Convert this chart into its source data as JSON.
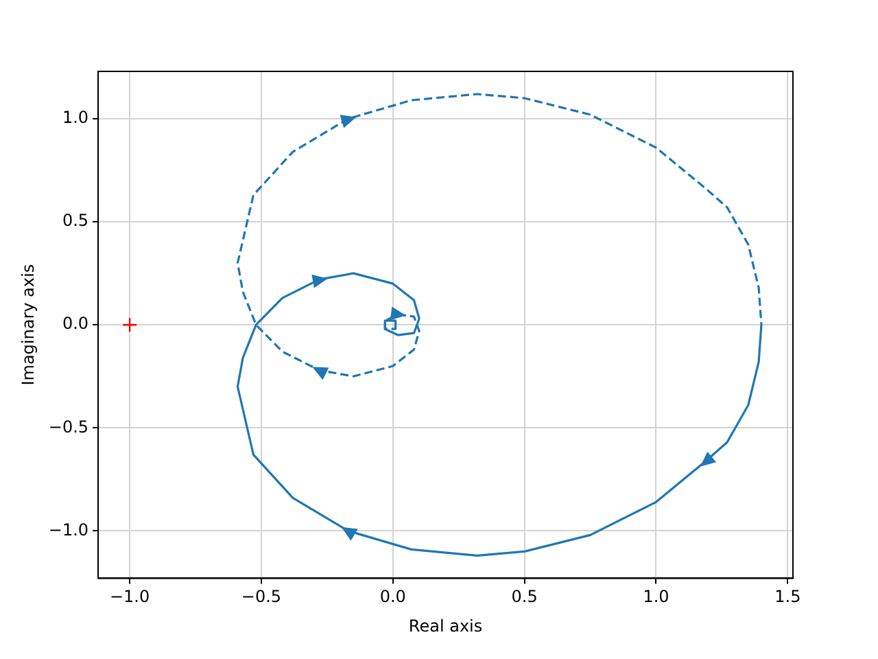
{
  "chart_data": {
    "type": "line",
    "xlabel": "Real axis",
    "ylabel": "Imaginary axis",
    "xlim": [
      -1.12,
      1.52
    ],
    "ylim": [
      -1.23,
      1.23
    ],
    "xticks": [
      {
        "value": -1,
        "label": "−1.0"
      },
      {
        "value": -0.5,
        "label": "−0.5"
      },
      {
        "value": 0,
        "label": "0.0"
      },
      {
        "value": 0.5,
        "label": "0.5"
      },
      {
        "value": 1,
        "label": "1.0"
      },
      {
        "value": 1.5,
        "label": "1.5"
      }
    ],
    "yticks": [
      {
        "value": -1,
        "label": "−1.0"
      },
      {
        "value": -0.5,
        "label": "−0.5"
      },
      {
        "value": 0,
        "label": "0.0"
      },
      {
        "value": 0.5,
        "label": "0.5"
      },
      {
        "value": 1,
        "label": "1.0"
      }
    ],
    "grid": true,
    "legend": false,
    "marker": "none",
    "series": [
      {
        "color": "#1f77b4",
        "line_style": "solid",
        "x": [
          1.4,
          1.39,
          1.35,
          1.27,
          1.19,
          1.0,
          0.75,
          0.5,
          0.32,
          0.07,
          -0.17,
          -0.38,
          -0.53,
          -0.59,
          -0.57,
          -0.52,
          -0.42,
          -0.28,
          -0.15,
          0.0,
          0.08,
          0.1,
          0.08,
          0.02,
          -0.03,
          -0.03,
          0.01,
          0.01
        ],
        "values": [
          0,
          -0.18,
          -0.39,
          -0.57,
          -0.66,
          -0.86,
          -1.02,
          -1.1,
          -1.12,
          -1.09,
          -1.0,
          -0.84,
          -0.63,
          -0.3,
          -0.16,
          0,
          0.13,
          0.22,
          0.25,
          0.2,
          0.12,
          0.03,
          -0.04,
          -0.05,
          -0.02,
          0.02,
          0.02,
          0
        ]
      },
      {
        "color": "#1f77b4",
        "line_style": "dashed",
        "x": [
          0.01,
          0.01,
          -0.03,
          -0.03,
          0.02,
          0.08,
          0.1,
          0.08,
          0.0,
          -0.15,
          -0.28,
          -0.42,
          -0.52,
          -0.57,
          -0.59,
          -0.53,
          -0.38,
          -0.17,
          0.07,
          0.32,
          0.5,
          0.75,
          1.0,
          1.19,
          1.27,
          1.35,
          1.39,
          1.4
        ],
        "values": [
          0,
          -0.02,
          -0.02,
          0.02,
          0.05,
          0.04,
          -0.03,
          -0.12,
          -0.2,
          -0.25,
          -0.22,
          -0.13,
          0,
          0.16,
          0.3,
          0.63,
          0.84,
          1.0,
          1.09,
          1.12,
          1.1,
          1.02,
          0.86,
          0.66,
          0.57,
          0.39,
          0.18,
          0
        ]
      },
      {
        "type": "scatter",
        "color": "#ff0000",
        "marker": "cross",
        "x": [
          -1
        ],
        "values": [
          0
        ]
      }
    ]
  }
}
